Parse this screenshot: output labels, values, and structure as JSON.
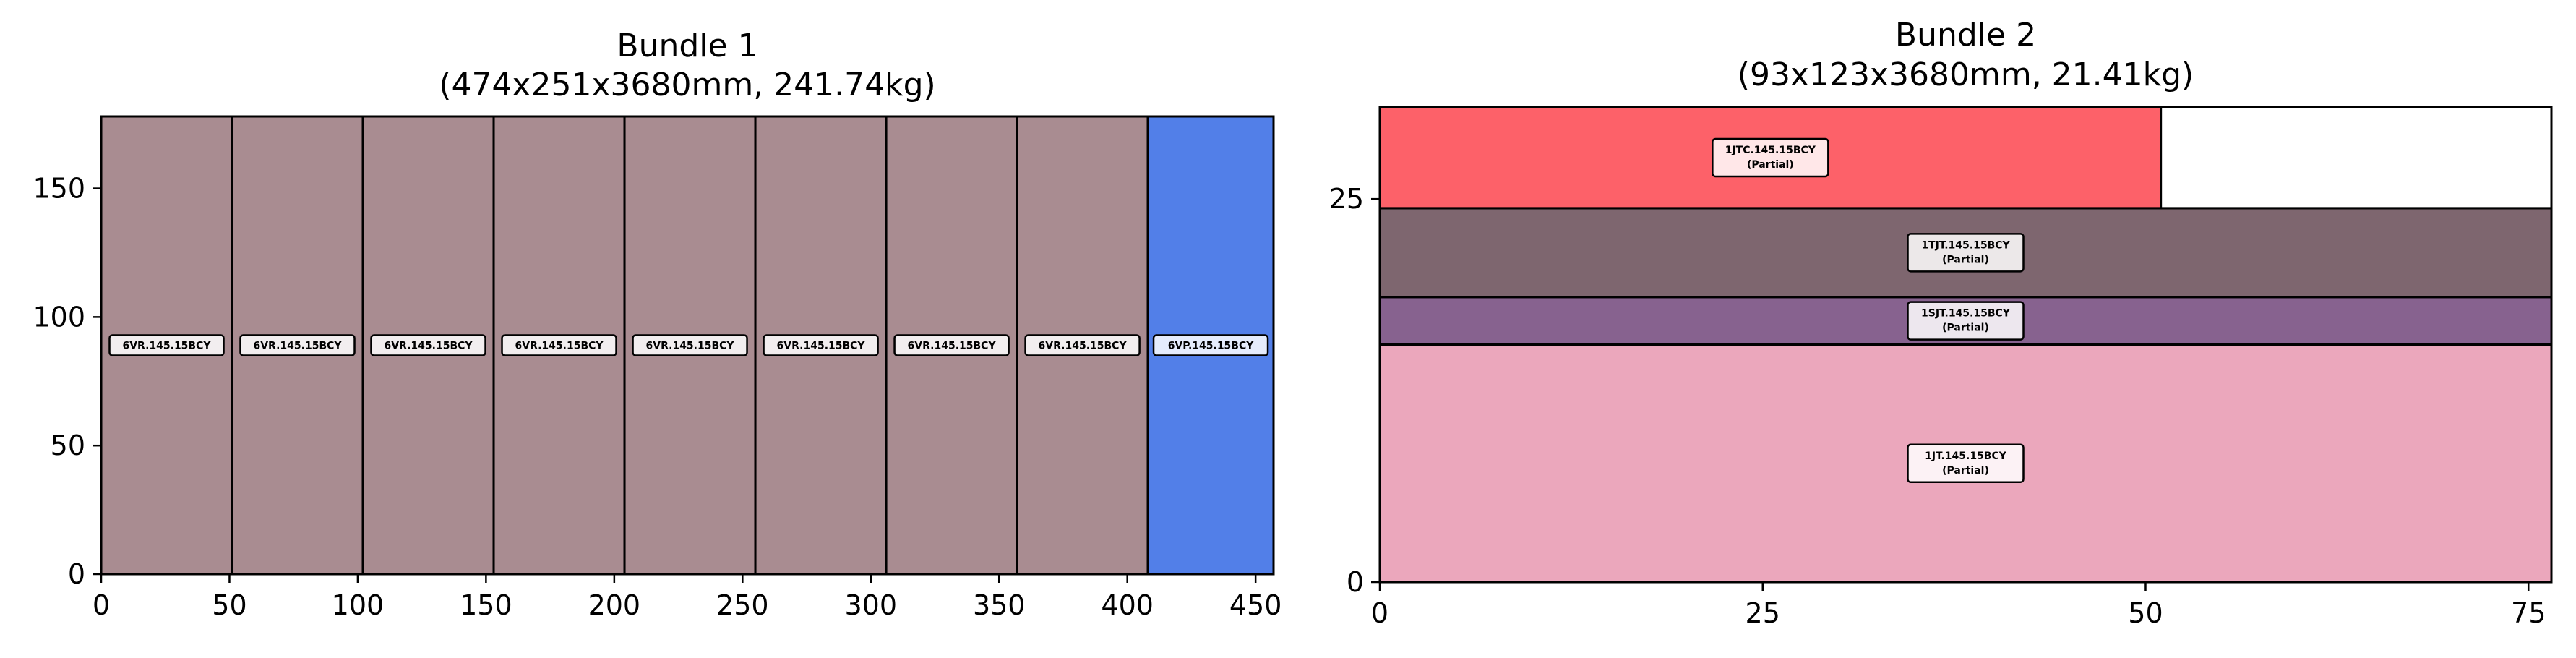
{
  "chart_data": [
    {
      "type": "bar",
      "title_lines": [
        "Bundle 1",
        "(474x251x3680mm, 241.74kg)"
      ],
      "xlabel": "",
      "ylabel": "",
      "xlim": [
        0,
        457
      ],
      "ylim": [
        0,
        178
      ],
      "xticks": [
        "0",
        "50",
        "100",
        "150",
        "200",
        "250",
        "300",
        "350",
        "400",
        "450"
      ],
      "yticks": [
        "0",
        "50",
        "100",
        "150"
      ],
      "grid": false,
      "pieces": [
        {
          "x0": 0,
          "x1": 51,
          "y0": 0,
          "y1": 178,
          "label": "6VR.145.15BCY",
          "color": "#a98c91"
        },
        {
          "x0": 51,
          "x1": 102,
          "y0": 0,
          "y1": 178,
          "label": "6VR.145.15BCY",
          "color": "#a98c91"
        },
        {
          "x0": 102,
          "x1": 153,
          "y0": 0,
          "y1": 178,
          "label": "6VR.145.15BCY",
          "color": "#a98c91"
        },
        {
          "x0": 153,
          "x1": 204,
          "y0": 0,
          "y1": 178,
          "label": "6VR.145.15BCY",
          "color": "#a98c91"
        },
        {
          "x0": 204,
          "x1": 255,
          "y0": 0,
          "y1": 178,
          "label": "6VR.145.15BCY",
          "color": "#a98c91"
        },
        {
          "x0": 255,
          "x1": 306,
          "y0": 0,
          "y1": 178,
          "label": "6VR.145.15BCY",
          "color": "#a98c91"
        },
        {
          "x0": 306,
          "x1": 357,
          "y0": 0,
          "y1": 178,
          "label": "6VR.145.15BCY",
          "color": "#a98c91"
        },
        {
          "x0": 357,
          "x1": 408,
          "y0": 0,
          "y1": 178,
          "label": "6VR.145.15BCY",
          "color": "#a98c91"
        },
        {
          "x0": 408,
          "x1": 457,
          "y0": 0,
          "y1": 178,
          "label": "6VP.145.15BCY",
          "color": "#527fe8"
        }
      ]
    },
    {
      "type": "bar",
      "title_lines": [
        "Bundle 2",
        "(93x123x3680mm, 21.41kg)"
      ],
      "xlabel": "",
      "ylabel": "",
      "xlim": [
        0,
        76.5
      ],
      "ylim": [
        0,
        31
      ],
      "xticks": [
        "0",
        "25",
        "50",
        "75"
      ],
      "yticks": [
        "0",
        "25"
      ],
      "grid": false,
      "pieces": [
        {
          "x0": 0,
          "x1": 76.5,
          "y0": 0,
          "y1": 15.5,
          "label": "1JT.145.15BCY",
          "sublabel": "(Partial)",
          "color": "#eba7bc"
        },
        {
          "x0": 0,
          "x1": 76.5,
          "y0": 15.5,
          "y1": 18.6,
          "label": "1SJT.145.15BCY",
          "sublabel": "(Partial)",
          "color": "#87628f"
        },
        {
          "x0": 0,
          "x1": 76.5,
          "y0": 18.6,
          "y1": 24.4,
          "label": "1TJT.145.15BCY",
          "sublabel": "(Partial)",
          "color": "#7e666f"
        },
        {
          "x0": 0,
          "x1": 51,
          "y0": 24.4,
          "y1": 31,
          "label": "1JTC.145.15BCY",
          "sublabel": "(Partial)",
          "color": "#fd6169"
        },
        {
          "x0": 51,
          "x1": 76.5,
          "y0": 24.4,
          "y1": 31,
          "label": "",
          "sublabel": "",
          "color": "#ffffff"
        }
      ]
    }
  ]
}
